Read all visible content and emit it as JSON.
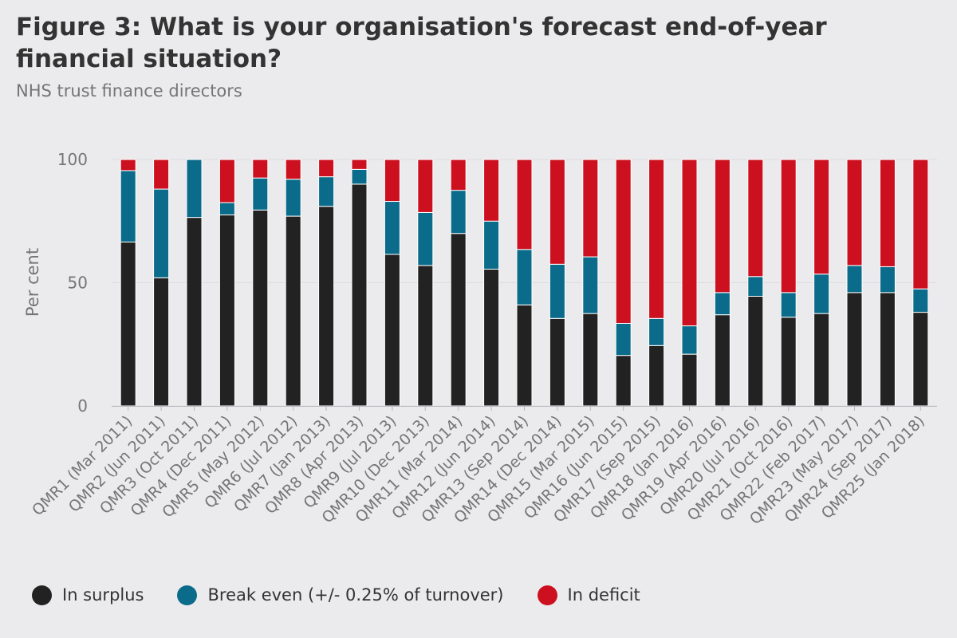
{
  "chart_data": {
    "type": "bar",
    "stacked": true,
    "title": "Figure 3: What is your organisation's forecast end-of-year financial situation?",
    "subtitle": "NHS trust finance directors",
    "ylabel": "Per cent",
    "xlabel": "",
    "ylim": [
      0,
      100
    ],
    "yticks": [
      "0",
      "50",
      "100"
    ],
    "grid": true,
    "legend_position": "bottom-left",
    "categories": [
      "QMR1 (Mar 2011)",
      "QMR2 (Jun 2011)",
      "QMR3 (Oct 2011)",
      "QMR4 (Dec 2011)",
      "QMR5 (May 2012)",
      "QMR6 (Jul 2012)",
      "QMR7 (Jan 2013)",
      "QMR8 (Apr 2013)",
      "QMR9 (Jul 2013)",
      "QMR10 (Dec 2013)",
      "QMR11 (Mar 2014)",
      "QMR12 (Jun 2014)",
      "QMR13 (Sep 2014)",
      "QMR14 (Dec 2014)",
      "QMR15 (Mar 2015)",
      "QMR16 (Jun 2015)",
      "QMR17 (Sep 2015)",
      "QMR18 (Jan 2016)",
      "QMR19 (Apr 2016)",
      "QMR20 (Jul 2016)",
      "QMR21 (Oct 2016)",
      "QMR22 (Feb 2017)",
      "QMR23 (May 2017)",
      "QMR24 (Sep 2017)",
      "QMR25 (Jan 2018)"
    ],
    "series": [
      {
        "name": "In surplus",
        "color": "#222222",
        "values": [
          66.5,
          52,
          76.5,
          77.5,
          79.5,
          77,
          81,
          90,
          61.5,
          57,
          70,
          55.5,
          41,
          35.5,
          37.5,
          20.5,
          24.5,
          21,
          37,
          44.5,
          36,
          37.5,
          46,
          46,
          38
        ]
      },
      {
        "name": "Break even (+/- 0.25% of turnover)",
        "color": "#0b6b8a",
        "values": [
          29,
          36,
          23.5,
          5,
          13,
          15,
          12,
          6,
          21.5,
          21.5,
          17.5,
          19.5,
          22.5,
          22,
          23,
          13,
          11,
          11.5,
          9,
          8,
          10,
          16,
          11,
          10.5,
          9.5
        ]
      },
      {
        "name": "In deficit",
        "color": "#cc101f",
        "values": [
          4.5,
          12,
          0,
          17.5,
          7.5,
          8,
          7,
          4,
          17,
          21.5,
          12.5,
          25,
          36.5,
          42.5,
          39.5,
          66.5,
          64.5,
          67.5,
          54,
          47.5,
          54,
          46.5,
          43,
          43.5,
          52.5
        ]
      }
    ]
  }
}
